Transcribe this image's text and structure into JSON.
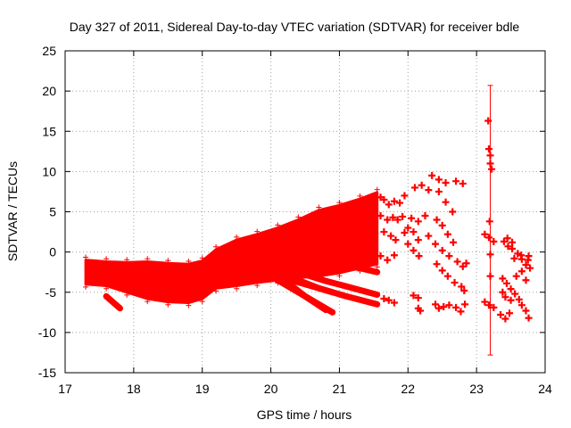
{
  "chart_data": {
    "type": "scatter",
    "title": "Day 327 of 2011, Sidereal Day-to-day VTEC variation (SDTVAR) for receiver bdle",
    "xlabel": "GPS time / hours",
    "ylabel": "SDTVAR / TECUs",
    "xlim": [
      17,
      24
    ],
    "ylim": [
      -15,
      25
    ],
    "xticks": [
      "17",
      "18",
      "19",
      "20",
      "21",
      "22",
      "23",
      "24"
    ],
    "yticks": [
      "-15",
      "-10",
      "-5",
      "0",
      "5",
      "10",
      "15",
      "20",
      "25"
    ],
    "grid": true,
    "legend": "none",
    "series_color": "#ff0000",
    "dense_band": {
      "x": [
        17.3,
        17.6,
        17.9,
        18.2,
        18.5,
        18.8,
        19.0,
        19.2,
        19.5,
        19.8,
        20.1,
        20.4,
        20.7,
        21.0,
        21.3,
        21.55
      ],
      "upper": [
        -1.0,
        -1.2,
        -1.3,
        -1.2,
        -1.4,
        -1.5,
        -1.1,
        0.3,
        1.5,
        2.2,
        3.0,
        4.0,
        5.2,
        5.8,
        6.6,
        7.4
      ],
      "lower": [
        -4.0,
        -4.2,
        -5.0,
        -5.8,
        -6.2,
        -6.3,
        -5.8,
        -4.5,
        -4.2,
        -3.8,
        -3.5,
        -3.2,
        -3.0,
        -2.6,
        -2.0,
        -1.5
      ]
    },
    "traces": [
      {
        "x": [
          19.5,
          20.0,
          20.5,
          20.9
        ],
        "y": [
          -1.5,
          -2.8,
          -4.0,
          -5.0
        ]
      },
      {
        "x": [
          20.2,
          20.5,
          20.8,
          21.2,
          21.55
        ],
        "y": [
          -2.0,
          -2.8,
          -3.6,
          -4.5,
          -5.3
        ]
      },
      {
        "x": [
          20.1,
          20.4,
          20.7,
          21.1,
          21.55
        ],
        "y": [
          -2.5,
          -3.5,
          -4.5,
          -5.5,
          -6.5
        ]
      },
      {
        "x": [
          20.0,
          20.3,
          20.6,
          20.9
        ],
        "y": [
          -3.0,
          -4.5,
          -6.0,
          -7.5
        ]
      },
      {
        "x": [
          20.2,
          20.5,
          20.8
        ],
        "y": [
          -3.5,
          -5.5,
          -7.2
        ]
      },
      {
        "x": [
          20.6,
          20.9,
          21.3,
          21.55
        ],
        "y": [
          -0.8,
          -1.3,
          -2.0,
          -2.5
        ]
      },
      {
        "x": [
          20.4,
          20.9,
          21.4
        ],
        "y": [
          0.5,
          -0.3,
          -1.0
        ]
      },
      {
        "x": [
          17.6,
          17.8
        ],
        "y": [
          -5.5,
          -7.0
        ]
      }
    ],
    "sparse_points": [
      {
        "x": 21.6,
        "y": 6.8
      },
      {
        "x": 21.65,
        "y": 6.5
      },
      {
        "x": 21.72,
        "y": 5.9
      },
      {
        "x": 21.8,
        "y": 6.3
      },
      {
        "x": 21.88,
        "y": 6.1
      },
      {
        "x": 21.95,
        "y": 7.0
      },
      {
        "x": 22.1,
        "y": 8.0
      },
      {
        "x": 22.2,
        "y": 8.3
      },
      {
        "x": 22.3,
        "y": 7.7
      },
      {
        "x": 22.35,
        "y": 9.5
      },
      {
        "x": 22.45,
        "y": 9.0
      },
      {
        "x": 22.55,
        "y": 8.6
      },
      {
        "x": 22.7,
        "y": 8.8
      },
      {
        "x": 22.8,
        "y": 8.5
      },
      {
        "x": 22.45,
        "y": 7.5
      },
      {
        "x": 22.55,
        "y": 6.2
      },
      {
        "x": 22.65,
        "y": 5.0
      },
      {
        "x": 21.6,
        "y": 4.5
      },
      {
        "x": 21.7,
        "y": 4.0
      },
      {
        "x": 21.78,
        "y": 4.3
      },
      {
        "x": 21.85,
        "y": 4.0
      },
      {
        "x": 21.92,
        "y": 4.4
      },
      {
        "x": 22.05,
        "y": 4.2
      },
      {
        "x": 22.15,
        "y": 3.8
      },
      {
        "x": 22.25,
        "y": 4.5
      },
      {
        "x": 22.42,
        "y": 4.0
      },
      {
        "x": 22.5,
        "y": 3.3
      },
      {
        "x": 22.58,
        "y": 2.2
      },
      {
        "x": 22.66,
        "y": 1.2
      },
      {
        "x": 21.65,
        "y": 2.5
      },
      {
        "x": 21.75,
        "y": 2.0
      },
      {
        "x": 21.82,
        "y": 1.5
      },
      {
        "x": 21.95,
        "y": 2.4
      },
      {
        "x": 22.0,
        "y": 3.0
      },
      {
        "x": 22.08,
        "y": 2.5
      },
      {
        "x": 22.15,
        "y": 1.5
      },
      {
        "x": 22.3,
        "y": 2.0
      },
      {
        "x": 22.0,
        "y": 1.0
      },
      {
        "x": 22.08,
        "y": 0.2
      },
      {
        "x": 22.16,
        "y": -0.5
      },
      {
        "x": 21.6,
        "y": -0.5
      },
      {
        "x": 21.7,
        "y": -1.0
      },
      {
        "x": 21.8,
        "y": -0.4
      },
      {
        "x": 22.4,
        "y": 1.0
      },
      {
        "x": 22.5,
        "y": 0.2
      },
      {
        "x": 22.6,
        "y": -0.5
      },
      {
        "x": 22.72,
        "y": -1.2
      },
      {
        "x": 22.8,
        "y": -1.8
      },
      {
        "x": 22.85,
        "y": -1.4
      },
      {
        "x": 22.42,
        "y": -1.5
      },
      {
        "x": 22.5,
        "y": -2.3
      },
      {
        "x": 22.58,
        "y": -3.0
      },
      {
        "x": 22.68,
        "y": -3.8
      },
      {
        "x": 22.78,
        "y": -4.3
      },
      {
        "x": 22.82,
        "y": -4.8
      },
      {
        "x": 21.65,
        "y": -5.8
      },
      {
        "x": 21.72,
        "y": -6.0
      },
      {
        "x": 21.8,
        "y": -6.3
      },
      {
        "x": 22.08,
        "y": -5.4
      },
      {
        "x": 22.15,
        "y": -5.7
      },
      {
        "x": 22.15,
        "y": -7.0
      },
      {
        "x": 22.18,
        "y": -7.3
      },
      {
        "x": 22.4,
        "y": -6.5
      },
      {
        "x": 22.45,
        "y": -7.0
      },
      {
        "x": 22.52,
        "y": -6.8
      },
      {
        "x": 22.6,
        "y": -6.6
      },
      {
        "x": 22.7,
        "y": -6.9
      },
      {
        "x": 22.77,
        "y": -7.4
      },
      {
        "x": 22.83,
        "y": -6.5
      },
      {
        "x": 23.17,
        "y": 16.3
      },
      {
        "x": 23.18,
        "y": 12.8
      },
      {
        "x": 23.2,
        "y": 12.0
      },
      {
        "x": 23.2,
        "y": 11.0
      },
      {
        "x": 23.22,
        "y": 10.3
      },
      {
        "x": 23.19,
        "y": 3.8
      },
      {
        "x": 23.12,
        "y": 2.2
      },
      {
        "x": 23.18,
        "y": 1.8
      },
      {
        "x": 23.25,
        "y": 1.3
      },
      {
        "x": 23.2,
        "y": -0.3
      },
      {
        "x": 23.2,
        "y": -3.0
      },
      {
        "x": 23.12,
        "y": -6.2
      },
      {
        "x": 23.18,
        "y": -6.6
      },
      {
        "x": 23.25,
        "y": -6.9
      },
      {
        "x": 23.35,
        "y": -7.8
      },
      {
        "x": 23.42,
        "y": -8.3
      },
      {
        "x": 23.48,
        "y": -7.6
      },
      {
        "x": 23.4,
        "y": 1.3
      },
      {
        "x": 23.46,
        "y": 0.7
      },
      {
        "x": 23.52,
        "y": 0.4
      },
      {
        "x": 23.6,
        "y": -0.2
      },
      {
        "x": 23.66,
        "y": -0.9
      },
      {
        "x": 23.72,
        "y": -1.6
      },
      {
        "x": 23.76,
        "y": -0.5
      },
      {
        "x": 23.45,
        "y": 1.7
      },
      {
        "x": 23.52,
        "y": 1.2
      },
      {
        "x": 23.38,
        "y": -3.3
      },
      {
        "x": 23.44,
        "y": -3.9
      },
      {
        "x": 23.5,
        "y": -4.6
      },
      {
        "x": 23.56,
        "y": -5.2
      },
      {
        "x": 23.62,
        "y": -5.9
      },
      {
        "x": 23.66,
        "y": -6.6
      },
      {
        "x": 23.72,
        "y": -7.3
      },
      {
        "x": 23.76,
        "y": -8.2
      },
      {
        "x": 23.38,
        "y": -5.0
      },
      {
        "x": 23.42,
        "y": -5.6
      },
      {
        "x": 23.5,
        "y": -6.0
      },
      {
        "x": 23.58,
        "y": -3.0
      },
      {
        "x": 23.66,
        "y": -2.4
      },
      {
        "x": 23.72,
        "y": -3.5
      },
      {
        "x": 23.78,
        "y": -2.0
      },
      {
        "x": 23.55,
        "y": -0.8
      },
      {
        "x": 23.65,
        "y": -0.4
      },
      {
        "x": 23.75,
        "y": -1.0
      }
    ],
    "error_bar": {
      "x": 23.2,
      "low": -12.8,
      "high": 20.7
    }
  }
}
